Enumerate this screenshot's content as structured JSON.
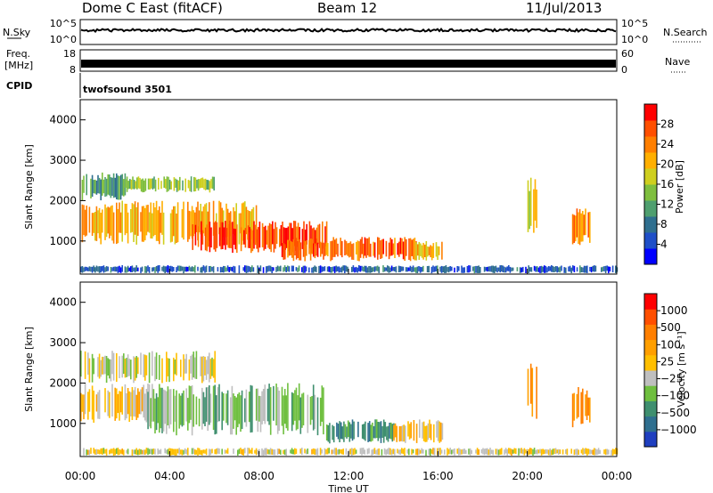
{
  "header": {
    "station": "Dome C East (fitACF)",
    "beam": "Beam 12",
    "date": "11/Jul/2013"
  },
  "panels_top": {
    "nsky_label": "N.Sky",
    "nsky_ticks": [
      "10^5",
      "10^0"
    ],
    "nsearch_label": "N.Search",
    "nsearch_ticks": [
      "10^5",
      "10^0"
    ],
    "freq_label": "Freq.",
    "freq_unit": "[MHz]",
    "freq_ticks": [
      "18",
      "8"
    ],
    "nave_label": "Nave",
    "nave_ticks": [
      "60",
      "0"
    ],
    "cpid_label": "CPID",
    "cpid_value": "twofsound 3501"
  },
  "axes": {
    "x_label": "Time UT",
    "x_ticks": [
      "00:00",
      "04:00",
      "08:00",
      "12:00",
      "16:00",
      "20:00",
      "00:00"
    ],
    "y_label": "Slant Range [km]",
    "y_ticks": [
      "4000",
      "3000",
      "2000",
      "1000"
    ]
  },
  "colorbars": {
    "power": {
      "label": "Power [dB]",
      "ticks": [
        "28",
        "24",
        "20",
        "16",
        "12",
        "8",
        "4"
      ],
      "colors": [
        "#0000ff",
        "#1f4fc8",
        "#2f6f8f",
        "#4f9f6f",
        "#7fbf3f",
        "#cfcf1f",
        "#ffaf00",
        "#ff7f00",
        "#ff4f00",
        "#ff0000"
      ]
    },
    "velocity": {
      "label": "Velocity [m s⁻¹]",
      "ticks": [
        "1000",
        "500",
        "100",
        "25",
        "−25",
        "−100",
        "−500",
        "−1000"
      ],
      "colors": [
        "#1f3fbf",
        "#2f6f8f",
        "#3f8f6f",
        "#6fbf3f",
        "#bfbfbf",
        "#ffbf00",
        "#ff9f00",
        "#ff7f00",
        "#ff4f00",
        "#ff0000"
      ]
    }
  },
  "chart_data": [
    {
      "type": "heatmap",
      "title": "Power",
      "x_range_hours": [
        0,
        24
      ],
      "y_range_km": [
        180,
        4500
      ],
      "clim_db": [
        0,
        30
      ],
      "echo_regions": [
        {
          "t_start": 0.0,
          "t_end": 8.0,
          "range_low": 900,
          "range_high": 2000,
          "value": 20
        },
        {
          "t_start": 0.0,
          "t_end": 2.0,
          "range_low": 2000,
          "range_high": 2700,
          "value": 10
        },
        {
          "t_start": 2.0,
          "t_end": 6.0,
          "range_low": 2200,
          "range_high": 2600,
          "value": 14
        },
        {
          "t_start": 5.0,
          "t_end": 11.0,
          "range_low": 700,
          "range_high": 1500,
          "value": 26
        },
        {
          "t_start": 9.0,
          "t_end": 15.0,
          "range_low": 500,
          "range_high": 1100,
          "value": 24
        },
        {
          "t_start": 15.0,
          "t_end": 16.2,
          "range_low": 500,
          "range_high": 1000,
          "value": 20
        },
        {
          "t_start": 20.0,
          "t_end": 20.4,
          "range_low": 1100,
          "range_high": 2600,
          "value": 18
        },
        {
          "t_start": 22.0,
          "t_end": 22.8,
          "range_low": 900,
          "range_high": 1900,
          "value": 22
        },
        {
          "t_start": 0.0,
          "t_end": 24.0,
          "range_low": 200,
          "range_high": 400,
          "value": 6
        }
      ]
    },
    {
      "type": "heatmap",
      "title": "Velocity",
      "x_range_hours": [
        0,
        24
      ],
      "y_range_km": [
        180,
        4500
      ],
      "clim_ms": [
        -1000,
        1000
      ],
      "echo_regions": [
        {
          "t_start": 0.0,
          "t_end": 3.0,
          "range_low": 1000,
          "range_high": 2000,
          "value": 100
        },
        {
          "t_start": 0.0,
          "t_end": 6.0,
          "range_low": 2000,
          "range_high": 2800,
          "value": -100
        },
        {
          "t_start": 3.0,
          "t_end": 11.0,
          "range_low": 700,
          "range_high": 2000,
          "value": -300
        },
        {
          "t_start": 11.0,
          "t_end": 14.0,
          "range_low": 500,
          "range_high": 1100,
          "value": -500
        },
        {
          "t_start": 14.0,
          "t_end": 16.2,
          "range_low": 500,
          "range_high": 1100,
          "value": 100
        },
        {
          "t_start": 20.0,
          "t_end": 20.4,
          "range_low": 1100,
          "range_high": 2500,
          "value": 500
        },
        {
          "t_start": 22.0,
          "t_end": 22.8,
          "range_low": 900,
          "range_high": 1900,
          "value": 500
        },
        {
          "t_start": 0.0,
          "t_end": 24.0,
          "range_low": 200,
          "range_high": 400,
          "value": -25
        }
      ]
    }
  ]
}
